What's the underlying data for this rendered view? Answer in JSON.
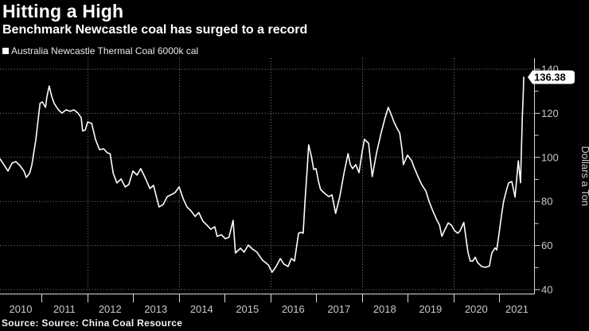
{
  "header": {
    "title": "Hitting a High",
    "subtitle": "Benchmark Newcastle coal has surged to a record"
  },
  "legend": {
    "label": "Australia Newcastle Thermal Coal 6000k cal",
    "swatch_color": "#ffffff"
  },
  "footer": {
    "source": "Source: Source: China Coal Resource"
  },
  "chart_data": {
    "type": "line",
    "title": "Hitting a High",
    "subtitle": "Benchmark Newcastle coal has surged to a record",
    "ylabel": "Dollars a Ton",
    "yticks": [
      40,
      60,
      80,
      100,
      120,
      140
    ],
    "y_minor_step": 10,
    "ylim": [
      38,
      145
    ],
    "xticks_years": [
      2010,
      2011,
      2012,
      2013,
      2014,
      2015,
      2016,
      2017,
      2018,
      2019,
      2020,
      2021
    ],
    "x_gridline_years": [
      2012,
      2014,
      2016,
      2018,
      2020
    ],
    "grid": "dotted",
    "legend_position": "top-left",
    "last_point_label": "136.38",
    "colors": {
      "background": "#000000",
      "line": "#ffffff",
      "axis": "#d9d9d9",
      "grid": "#828282",
      "tick_text": "#c9c9c9",
      "badge_bg": "#ffffff",
      "badge_text": "#000000"
    },
    "series": [
      {
        "name": "Australia Newcastle Thermal Coal 6000k cal",
        "color": "#ffffff",
        "points": [
          [
            2010.1,
            99.2
          ],
          [
            2010.18,
            96.7
          ],
          [
            2010.27,
            93.8
          ],
          [
            2010.36,
            97.4
          ],
          [
            2010.44,
            98.1
          ],
          [
            2010.53,
            96.3
          ],
          [
            2010.62,
            93.8
          ],
          [
            2010.67,
            90.9
          ],
          [
            2010.74,
            92.7
          ],
          [
            2010.79,
            96.3
          ],
          [
            2010.88,
            108.2
          ],
          [
            2010.97,
            124.5
          ],
          [
            2011.02,
            125.2
          ],
          [
            2011.09,
            122.7
          ],
          [
            2011.12,
            127.4
          ],
          [
            2011.17,
            132.4
          ],
          [
            2011.23,
            127.4
          ],
          [
            2011.28,
            124.5
          ],
          [
            2011.37,
            121.6
          ],
          [
            2011.45,
            120.1
          ],
          [
            2011.54,
            121.6
          ],
          [
            2011.63,
            120.9
          ],
          [
            2011.71,
            121.6
          ],
          [
            2011.8,
            120.1
          ],
          [
            2011.87,
            118.0
          ],
          [
            2011.9,
            112.0
          ],
          [
            2011.96,
            112.5
          ],
          [
            2012.01,
            116.1
          ],
          [
            2012.1,
            115.4
          ],
          [
            2012.18,
            108.2
          ],
          [
            2012.27,
            103.5
          ],
          [
            2012.36,
            103.9
          ],
          [
            2012.44,
            102.1
          ],
          [
            2012.5,
            101.7
          ],
          [
            2012.57,
            92.7
          ],
          [
            2012.65,
            88.4
          ],
          [
            2012.74,
            90.2
          ],
          [
            2012.83,
            86.6
          ],
          [
            2012.91,
            87.7
          ],
          [
            2013.0,
            93.8
          ],
          [
            2013.09,
            92.0
          ],
          [
            2013.17,
            94.9
          ],
          [
            2013.28,
            90.2
          ],
          [
            2013.37,
            85.9
          ],
          [
            2013.45,
            87.3
          ],
          [
            2013.57,
            77.5
          ],
          [
            2013.66,
            78.6
          ],
          [
            2013.75,
            82.2
          ],
          [
            2013.83,
            83.0
          ],
          [
            2013.92,
            84.0
          ],
          [
            2014.01,
            86.6
          ],
          [
            2014.1,
            81.2
          ],
          [
            2014.18,
            77.5
          ],
          [
            2014.27,
            75.7
          ],
          [
            2014.36,
            73.2
          ],
          [
            2014.44,
            75.0
          ],
          [
            2014.53,
            71.0
          ],
          [
            2014.62,
            69.2
          ],
          [
            2014.7,
            67.4
          ],
          [
            2014.79,
            68.5
          ],
          [
            2014.84,
            64.2
          ],
          [
            2014.93,
            64.9
          ],
          [
            2015.02,
            63.1
          ],
          [
            2015.1,
            63.8
          ],
          [
            2015.19,
            71.4
          ],
          [
            2015.24,
            56.6
          ],
          [
            2015.35,
            58.8
          ],
          [
            2015.43,
            57.0
          ],
          [
            2015.52,
            60.2
          ],
          [
            2015.61,
            58.4
          ],
          [
            2015.71,
            57.0
          ],
          [
            2015.83,
            53.4
          ],
          [
            2015.96,
            51.2
          ],
          [
            2016.04,
            47.9
          ],
          [
            2016.13,
            50.5
          ],
          [
            2016.22,
            54.1
          ],
          [
            2016.3,
            51.6
          ],
          [
            2016.39,
            50.5
          ],
          [
            2016.46,
            54.1
          ],
          [
            2016.53,
            53.0
          ],
          [
            2016.62,
            65.6
          ],
          [
            2016.67,
            66.0
          ],
          [
            2016.72,
            65.6
          ],
          [
            2016.76,
            80.1
          ],
          [
            2016.81,
            95.6
          ],
          [
            2016.84,
            105.7
          ],
          [
            2016.9,
            100.3
          ],
          [
            2016.95,
            94.5
          ],
          [
            2017.0,
            94.9
          ],
          [
            2017.05,
            89.5
          ],
          [
            2017.1,
            85.5
          ],
          [
            2017.19,
            83.7
          ],
          [
            2017.28,
            82.2
          ],
          [
            2017.35,
            83.0
          ],
          [
            2017.43,
            74.6
          ],
          [
            2017.52,
            82.2
          ],
          [
            2017.61,
            92.7
          ],
          [
            2017.7,
            101.7
          ],
          [
            2017.75,
            96.7
          ],
          [
            2017.8,
            94.9
          ],
          [
            2017.87,
            96.7
          ],
          [
            2017.94,
            93.1
          ],
          [
            2018.01,
            102.8
          ],
          [
            2018.06,
            108.2
          ],
          [
            2018.15,
            106.4
          ],
          [
            2018.23,
            91.3
          ],
          [
            2018.32,
            101.7
          ],
          [
            2018.41,
            110.0
          ],
          [
            2018.5,
            117.3
          ],
          [
            2018.58,
            122.7
          ],
          [
            2018.65,
            119.1
          ],
          [
            2018.7,
            116.2
          ],
          [
            2018.76,
            113.6
          ],
          [
            2018.83,
            111.1
          ],
          [
            2018.88,
            103.5
          ],
          [
            2018.91,
            96.7
          ],
          [
            2019.0,
            101.0
          ],
          [
            2019.09,
            98.5
          ],
          [
            2019.14,
            95.6
          ],
          [
            2019.23,
            91.3
          ],
          [
            2019.31,
            87.7
          ],
          [
            2019.4,
            84.8
          ],
          [
            2019.47,
            80.1
          ],
          [
            2019.54,
            76.4
          ],
          [
            2019.63,
            72.1
          ],
          [
            2019.7,
            69.2
          ],
          [
            2019.75,
            64.2
          ],
          [
            2019.83,
            67.8
          ],
          [
            2019.89,
            70.3
          ],
          [
            2019.96,
            69.2
          ],
          [
            2020.03,
            66.7
          ],
          [
            2020.1,
            65.6
          ],
          [
            2020.15,
            66.7
          ],
          [
            2020.23,
            70.5
          ],
          [
            2020.32,
            57.0
          ],
          [
            2020.37,
            53.0
          ],
          [
            2020.42,
            52.9
          ],
          [
            2020.48,
            54.7
          ],
          [
            2020.53,
            52.3
          ],
          [
            2020.62,
            50.5
          ],
          [
            2020.7,
            50.1
          ],
          [
            2020.79,
            50.7
          ],
          [
            2020.84,
            56.5
          ],
          [
            2020.91,
            58.9
          ],
          [
            2020.95,
            58.0
          ],
          [
            2021.0,
            65.5
          ],
          [
            2021.05,
            73.3
          ],
          [
            2021.1,
            80.0
          ],
          [
            2021.16,
            85.0
          ],
          [
            2021.21,
            88.5
          ],
          [
            2021.28,
            89.0
          ],
          [
            2021.35,
            82.0
          ],
          [
            2021.42,
            98.5
          ],
          [
            2021.47,
            88.5
          ],
          [
            2021.49,
            105.0
          ],
          [
            2021.51,
            119.0
          ],
          [
            2021.53,
            130.0
          ],
          [
            2021.54,
            136.38
          ]
        ]
      }
    ]
  }
}
